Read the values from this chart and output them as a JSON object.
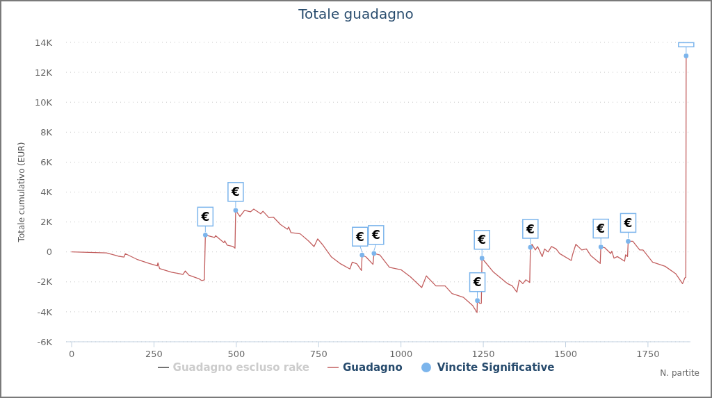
{
  "chart_data": {
    "type": "line",
    "title": "Totale guadagno",
    "xlabel": "N. partite",
    "ylabel": "Totale cumulativo (EUR)",
    "xlim": [
      -17,
      1879
    ],
    "xticks": [
      0,
      250,
      500,
      750,
      1000,
      1250,
      1500,
      1750
    ],
    "ylim": [
      -6000,
      14000
    ],
    "yticks": [
      {
        "value": -6000,
        "label": "-6K"
      },
      {
        "value": -4000,
        "label": "-4K"
      },
      {
        "value": -2000,
        "label": "-2K"
      },
      0,
      {
        "value": 2000,
        "label": "2K"
      },
      {
        "value": 4000,
        "label": "4K"
      },
      {
        "value": 6000,
        "label": "6K"
      },
      {
        "value": 8000,
        "label": "8K"
      },
      {
        "value": 10000,
        "label": "10K"
      },
      {
        "value": 12000,
        "label": "12K"
      },
      {
        "value": 14000,
        "label": "14K"
      }
    ],
    "grid": "y",
    "legend": "bottom",
    "series": [
      {
        "name": "Guadagno escluso rake",
        "color": "#444444"
      },
      {
        "name": "Guadagno",
        "color": "#c25e5e",
        "marker": "none",
        "x": [
          0,
          106,
          141,
          159,
          163,
          198,
          236,
          260,
          262,
          267,
          303,
          338,
          345,
          356,
          388,
          395,
          403,
          406,
          434,
          437,
          462,
          465,
          472,
          490,
          496,
          498,
          511,
          525,
          543,
          553,
          574,
          581,
          599,
          613,
          634,
          655,
          659,
          666,
          694,
          719,
          736,
          747,
          761,
          789,
          817,
          845,
          852,
          866,
          880,
          882,
          894,
          915,
          918,
          936,
          965,
          1000,
          1028,
          1063,
          1077,
          1106,
          1134,
          1155,
          1190,
          1218,
          1231,
          1232,
          1239,
          1244,
          1246,
          1281,
          1324,
          1338,
          1352,
          1359,
          1370,
          1379,
          1391,
          1393,
          1398,
          1408,
          1415,
          1429,
          1436,
          1447,
          1457,
          1471,
          1482,
          1517,
          1521,
          1531,
          1549,
          1563,
          1577,
          1605,
          1607,
          1619,
          1637,
          1640,
          1647,
          1657,
          1679,
          1682,
          1688,
          1690,
          1704,
          1725,
          1735,
          1764,
          1802,
          1834,
          1855,
          1862,
          1865,
          1866
        ],
        "values": [
          0,
          -70,
          -280,
          -340,
          -120,
          -490,
          -770,
          -930,
          -730,
          -1110,
          -1350,
          -1500,
          -1270,
          -1550,
          -1810,
          -1920,
          -1860,
          1130,
          970,
          1090,
          620,
          740,
          460,
          360,
          250,
          2780,
          2370,
          2780,
          2680,
          2860,
          2550,
          2720,
          2290,
          2320,
          1830,
          1520,
          1670,
          1290,
          1210,
          740,
          360,
          870,
          510,
          -340,
          -800,
          -1140,
          -680,
          -800,
          -1240,
          -210,
          -340,
          -830,
          -100,
          -210,
          -1030,
          -1190,
          -1650,
          -2380,
          -1600,
          -2270,
          -2270,
          -2780,
          -3040,
          -3590,
          -4050,
          -3250,
          -3430,
          -3430,
          -420,
          -1350,
          -2120,
          -2270,
          -2690,
          -1880,
          -2120,
          -1860,
          -2040,
          310,
          510,
          130,
          360,
          -310,
          200,
          0,
          360,
          200,
          -110,
          -570,
          -190,
          510,
          130,
          200,
          -260,
          -770,
          330,
          280,
          -110,
          50,
          -420,
          -310,
          -620,
          -190,
          -310,
          710,
          710,
          130,
          130,
          -680,
          -960,
          -1450,
          -2120,
          -1730,
          -1700,
          13100
        ]
      },
      {
        "name": "Vincite Significative",
        "type": "scatter",
        "color": "#7cb5ec",
        "marker": "circle",
        "x": [
          406,
          498,
          882,
          918,
          1232,
          1246,
          1393,
          1607,
          1690,
          1866
        ],
        "values": [
          1130,
          2780,
          -210,
          -100,
          -3250,
          -420,
          310,
          330,
          710,
          13100
        ],
        "value_labels": [
          "€",
          "€",
          "€",
          "€",
          "€",
          "€",
          "€",
          "€",
          "€",
          null
        ]
      }
    ]
  }
}
